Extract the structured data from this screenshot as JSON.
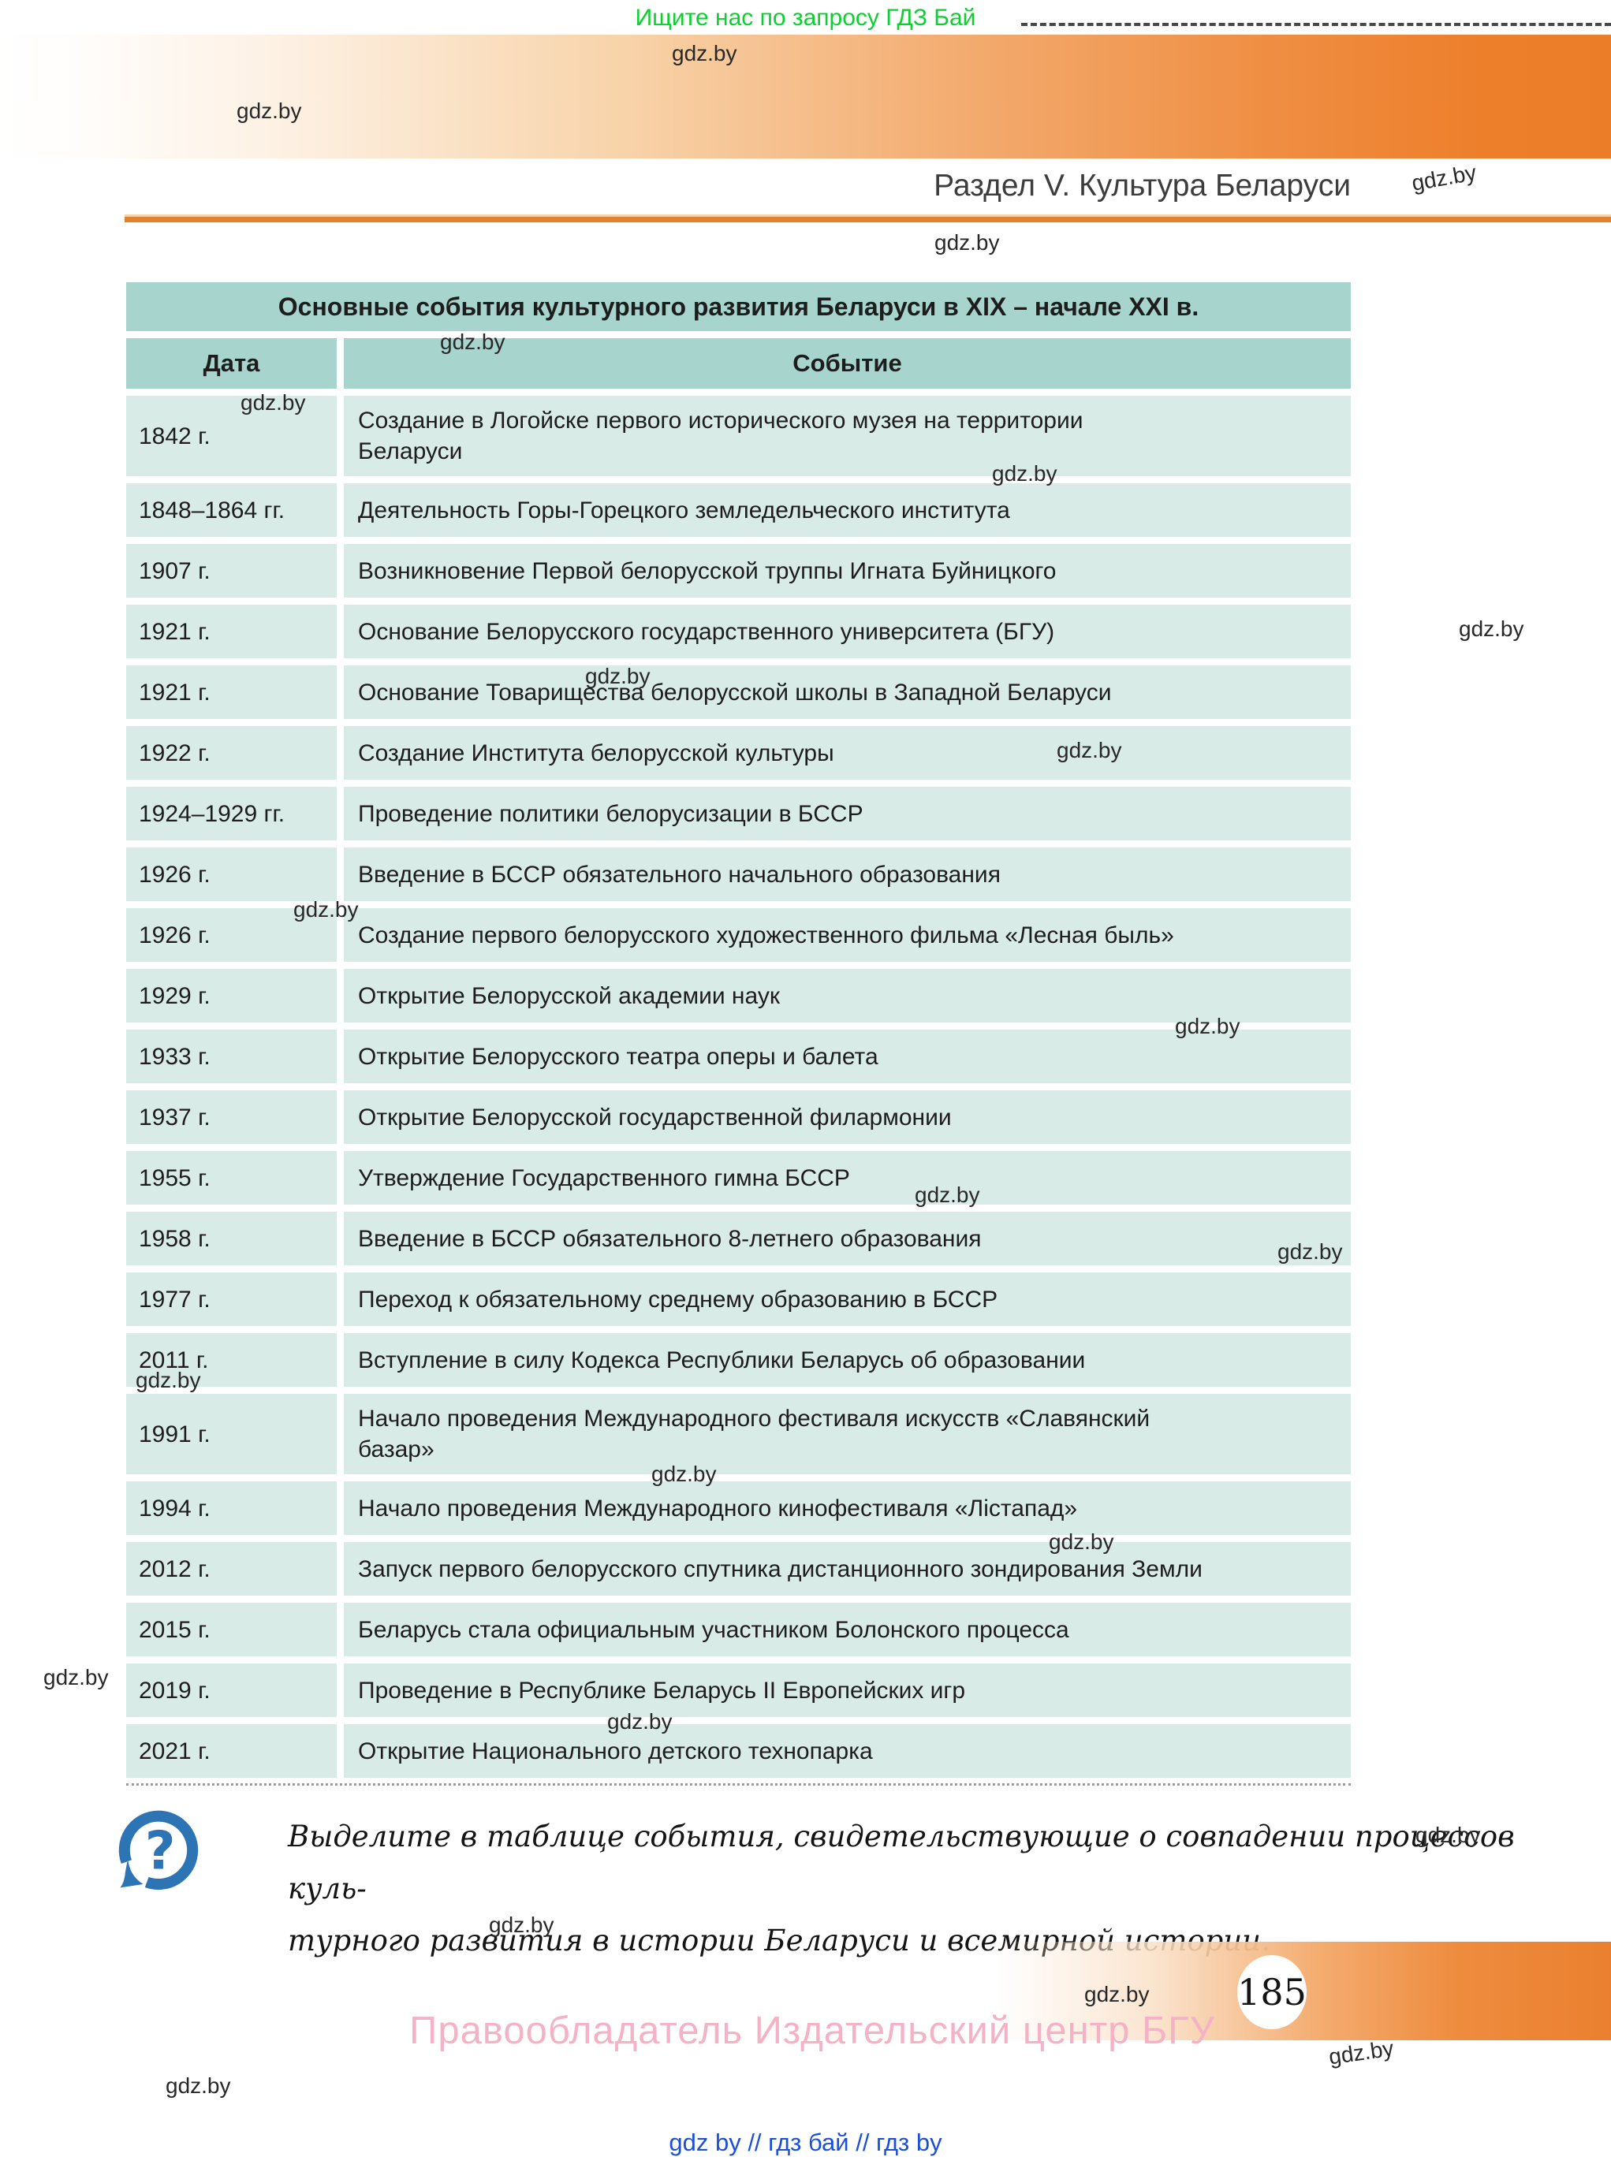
{
  "promo": {
    "text": "Ищите нас по запросу ГДЗ Бай"
  },
  "header": {
    "section_title": "Раздел V. Культура Беларуси"
  },
  "table": {
    "title": "Основные события культурного развития Беларуси в XIX – начале XXI в.",
    "columns": [
      "Дата",
      "Событие"
    ],
    "rows": [
      {
        "date": "1842 г.",
        "event": "Создание в Логойске первого исторического музея на территории\nБеларуси"
      },
      {
        "date": "1848–1864 гг.",
        "event": "Деятельность Горы-Горецкого земледельческого института"
      },
      {
        "date": "1907 г.",
        "event": "Возникновение Первой белорусской труппы Игната Буйницкого"
      },
      {
        "date": "1921 г.",
        "event": "Основание Белорусского государственного университета (БГУ)"
      },
      {
        "date": "1921 г.",
        "event": "Основание Товарищества белорусской школы в Западной Беларуси"
      },
      {
        "date": "1922 г.",
        "event": "Создание Института белорусской культуры"
      },
      {
        "date": "1924–1929 гг.",
        "event": "Проведение политики белорусизации в БССР"
      },
      {
        "date": "1926 г.",
        "event": "Введение в БССР обязательного начального образования"
      },
      {
        "date": "1926 г.",
        "event": "Создание первого белорусского художественного фильма «Лесная быль»"
      },
      {
        "date": "1929 г.",
        "event": "Открытие Белорусской академии наук"
      },
      {
        "date": "1933 г.",
        "event": "Открытие  Белорусского театра оперы и балета"
      },
      {
        "date": "1937 г.",
        "event": "Открытие Белорусской государственной филармонии"
      },
      {
        "date": "1955 г.",
        "event": "Утверждение Государственного гимна БССР"
      },
      {
        "date": "1958 г.",
        "event": "Введение в БССР обязательного 8-летнего образования"
      },
      {
        "date": "1977 г.",
        "event": "Переход к обязательному среднему образованию в БССР"
      },
      {
        "date": "2011 г.",
        "event": "Вступление в силу Кодекса Республики Беларусь об образовании"
      },
      {
        "date": "1991 г.",
        "event": "Начало проведения Международного фестиваля искусств «Славянский\nбазар»"
      },
      {
        "date": "1994 г.",
        "event": "Начало проведения Международного кинофестиваля «Лістапад»"
      },
      {
        "date": "2012 г.",
        "event": "Запуск первого белорусского спутника дистанционного зондирования Земли"
      },
      {
        "date": "2015 г.",
        "event": "Беларусь стала официальным участником Болонского процесса"
      },
      {
        "date": "2019 г.",
        "event": "Проведение в Республике Беларусь II Европейских игр"
      },
      {
        "date": "2021 г.",
        "event": "Открытие Национального детского технопарка"
      }
    ]
  },
  "task": {
    "icon": "question-mark-icon",
    "text": "Выделите в таблице события, свидетельствующие о совпадении процессов куль-\nтурного развития в истории Беларуси и всемирной истории."
  },
  "footer": {
    "publisher": "Правообладатель Издательский центр БГУ",
    "page_number": "185",
    "links": "gdz by  //  гдз бай  //  гдз by"
  },
  "watermark": {
    "text": "gdz.by",
    "positions": [
      [
        852,
        52,
        0
      ],
      [
        300,
        125,
        0
      ],
      [
        1790,
        210,
        -10
      ],
      [
        1185,
        292,
        0
      ],
      [
        558,
        418,
        0
      ],
      [
        305,
        495,
        0
      ],
      [
        1258,
        585,
        0
      ],
      [
        1850,
        782,
        0
      ],
      [
        742,
        842,
        0
      ],
      [
        1340,
        936,
        0
      ],
      [
        372,
        1138,
        0
      ],
      [
        1490,
        1286,
        0
      ],
      [
        1160,
        1500,
        0
      ],
      [
        1620,
        1572,
        0
      ],
      [
        172,
        1735,
        0
      ],
      [
        826,
        1854,
        0
      ],
      [
        1330,
        1940,
        0
      ],
      [
        55,
        2112,
        0
      ],
      [
        770,
        2168,
        0
      ],
      [
        1795,
        2312,
        0
      ],
      [
        620,
        2426,
        0
      ],
      [
        1375,
        2514,
        0
      ],
      [
        1685,
        2588,
        -8
      ],
      [
        210,
        2630,
        0
      ]
    ]
  },
  "colors": {
    "header_teal": "#a7d4cc",
    "row_teal": "#d9ebe6",
    "banner_orange": "#ec7d28",
    "rule_orange": "#e5802b",
    "promo_green": "#0ecf31",
    "link_blue": "#1c4fd8",
    "publisher_pink": "#f4b2c6",
    "icon_blue": "#2d74b5"
  }
}
